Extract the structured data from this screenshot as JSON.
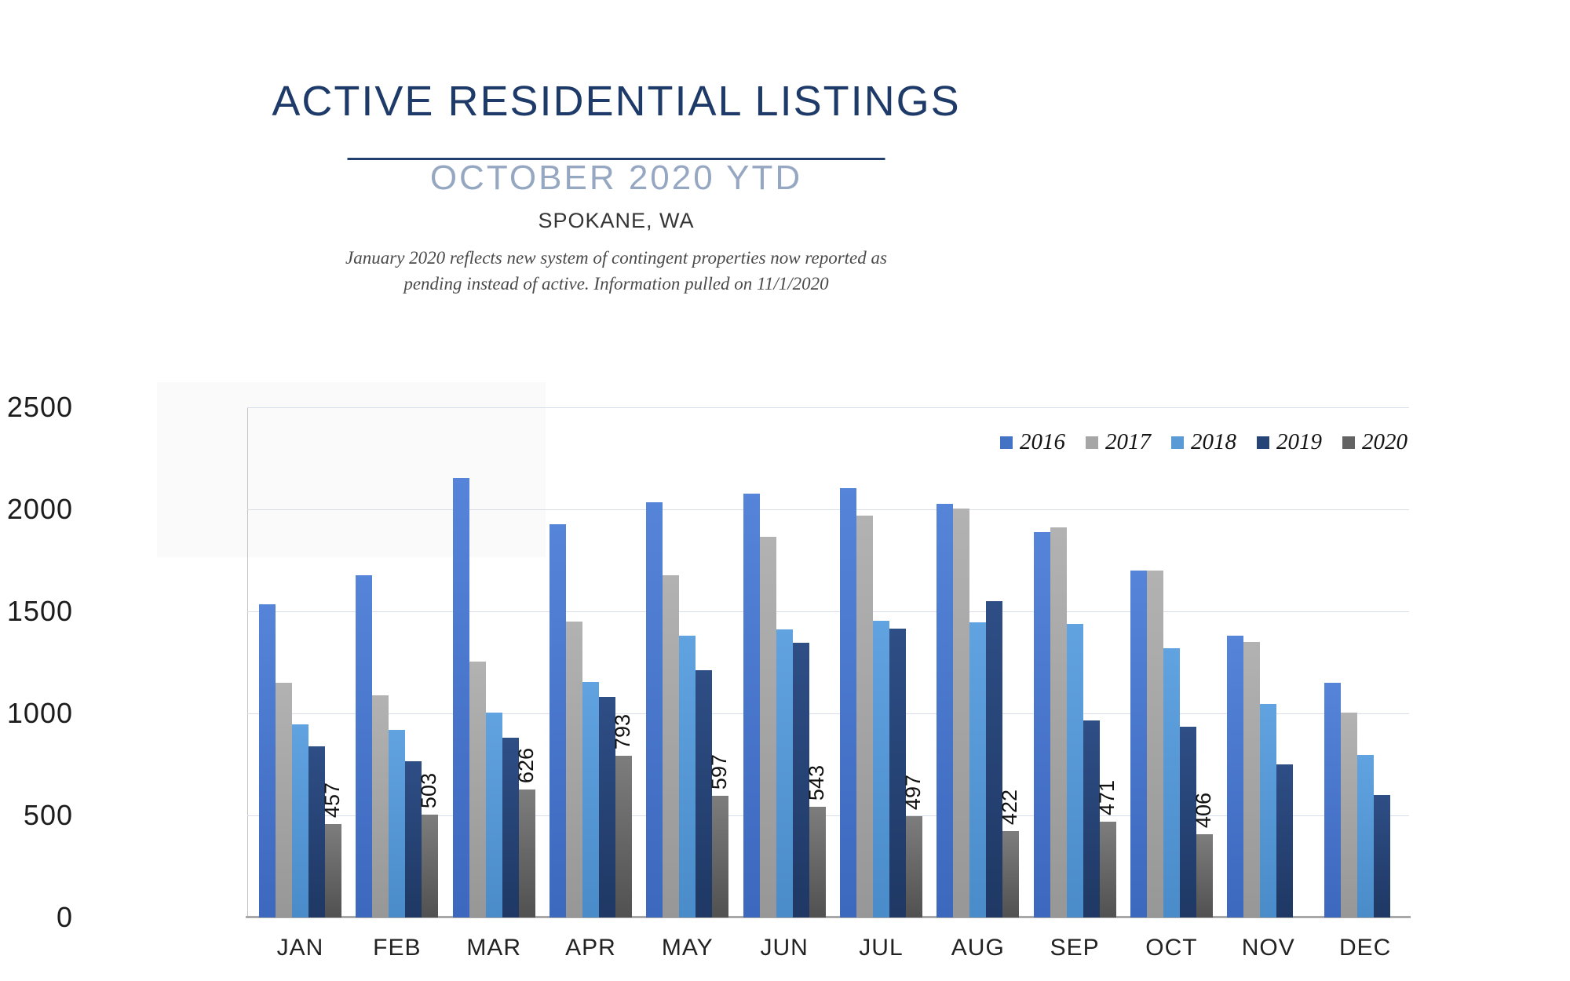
{
  "header": {
    "title": "ACTIVE RESIDENTIAL LISTINGS",
    "subtitle": "OCTOBER 2020 YTD",
    "location": "SPOKANE, WA",
    "note_line1": "January 2020 reflects new system of contingent properties now reported as",
    "note_line2": "pending instead of active.  Information pulled on 11/1/2020"
  },
  "chart_data": {
    "type": "bar",
    "title": "Active Residential Listings, October 2020 YTD, Spokane WA",
    "categories": [
      "JAN",
      "FEB",
      "MAR",
      "APR",
      "MAY",
      "JUN",
      "JUL",
      "AUG",
      "SEP",
      "OCT",
      "NOV",
      "DEC"
    ],
    "series": [
      {
        "name": "2016",
        "color": "#4472c4",
        "gradient": [
          "#5584d8",
          "#3c68be"
        ],
        "values": [
          1535,
          1675,
          2155,
          1925,
          2035,
          2075,
          2105,
          2025,
          1890,
          1700,
          1380,
          1150
        ]
      },
      {
        "name": "2017",
        "color": "#a6a6a6",
        "gradient": [
          "#b2b2b2",
          "#979797"
        ],
        "values": [
          1150,
          1090,
          1255,
          1450,
          1675,
          1865,
          1970,
          2005,
          1910,
          1700,
          1350,
          1005
        ]
      },
      {
        "name": "2018",
        "color": "#5b9bd5",
        "gradient": [
          "#61a2e0",
          "#4a8bc9"
        ],
        "values": [
          945,
          920,
          1005,
          1155,
          1380,
          1410,
          1455,
          1445,
          1440,
          1320,
          1045,
          795
        ]
      },
      {
        "name": "2019",
        "color": "#264478",
        "gradient": [
          "#2e4e86",
          "#1f3864"
        ],
        "values": [
          840,
          765,
          880,
          1080,
          1210,
          1345,
          1415,
          1550,
          965,
          935,
          750,
          600
        ]
      },
      {
        "name": "2020",
        "color": "#636363",
        "gradient": [
          "#7d7d7d",
          "#515151"
        ],
        "values": [
          457,
          503,
          626,
          793,
          597,
          543,
          497,
          422,
          471,
          406,
          null,
          null
        ],
        "data_labels": [
          "457",
          "503",
          "626",
          "793",
          "597",
          "543",
          "497",
          "422",
          "471",
          "406",
          null,
          null
        ]
      }
    ],
    "ylabel": "",
    "xlabel": "",
    "ylim": [
      0,
      2500
    ],
    "yticks": [
      0,
      500,
      1000,
      1500,
      2000,
      2500
    ],
    "grid": true,
    "legend_position": "inside-top-right"
  }
}
